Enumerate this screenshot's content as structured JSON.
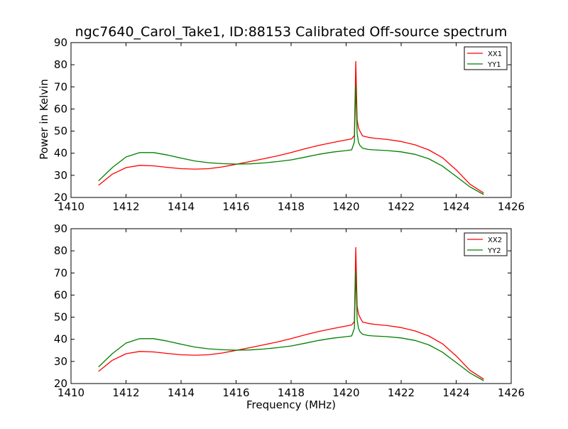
{
  "title": "ngc7640_Carol_Take1, ID:88153 Calibrated Off-source spectrum",
  "colors": {
    "xx": "#ff0000",
    "yy": "#008000"
  },
  "chart_data": [
    {
      "type": "line",
      "title": "ngc7640_Carol_Take1, ID:88153 Calibrated Off-source spectrum",
      "xlabel": "",
      "ylabel": "Power in Kelvin",
      "xlim": [
        1410,
        1426
      ],
      "ylim": [
        20,
        90
      ],
      "xticks": [
        1410,
        1412,
        1414,
        1416,
        1418,
        1420,
        1422,
        1424,
        1426
      ],
      "yticks": [
        20,
        30,
        40,
        50,
        60,
        70,
        80,
        90
      ],
      "grid": false,
      "legend": "top-right",
      "series": [
        {
          "name": "XX1",
          "color": "#ff0000",
          "x": [
            1411.0,
            1411.5,
            1412.0,
            1412.5,
            1413.0,
            1413.5,
            1414.0,
            1414.5,
            1415.0,
            1415.5,
            1416.0,
            1416.5,
            1417.0,
            1417.5,
            1418.0,
            1418.5,
            1419.0,
            1419.5,
            1420.0,
            1420.2,
            1420.3,
            1420.35,
            1420.4,
            1420.45,
            1420.5,
            1420.6,
            1420.8,
            1421.0,
            1421.5,
            1422.0,
            1422.5,
            1423.0,
            1423.5,
            1424.0,
            1424.5,
            1425.0
          ],
          "y": [
            25.5,
            30.5,
            33.5,
            34.5,
            34.3,
            33.6,
            33.0,
            32.8,
            33.0,
            33.8,
            35.0,
            36.2,
            37.5,
            38.8,
            40.3,
            42.0,
            43.5,
            44.8,
            46.0,
            46.5,
            48.0,
            81.5,
            55.0,
            51.5,
            50.0,
            47.8,
            47.2,
            46.8,
            46.2,
            45.3,
            43.8,
            41.5,
            38.0,
            32.5,
            26.0,
            22.0
          ]
        },
        {
          "name": "YY1",
          "color": "#008000",
          "x": [
            1411.0,
            1411.5,
            1412.0,
            1412.5,
            1413.0,
            1413.5,
            1414.0,
            1414.5,
            1415.0,
            1415.5,
            1416.0,
            1416.5,
            1417.0,
            1417.5,
            1418.0,
            1418.5,
            1419.0,
            1419.5,
            1420.0,
            1420.2,
            1420.3,
            1420.35,
            1420.4,
            1420.45,
            1420.5,
            1420.6,
            1420.8,
            1421.0,
            1421.5,
            1422.0,
            1422.5,
            1423.0,
            1423.5,
            1424.0,
            1424.5,
            1425.0
          ],
          "y": [
            27.5,
            33.5,
            38.3,
            40.3,
            40.3,
            39.2,
            37.8,
            36.5,
            35.7,
            35.3,
            35.1,
            35.2,
            35.6,
            36.2,
            37.0,
            38.2,
            39.5,
            40.5,
            41.2,
            41.5,
            45.0,
            71.0,
            49.0,
            45.0,
            43.5,
            42.3,
            41.7,
            41.5,
            41.2,
            40.6,
            39.5,
            37.5,
            34.2,
            29.5,
            24.8,
            21.3
          ]
        }
      ]
    },
    {
      "type": "line",
      "title": "",
      "xlabel": "Frequency (MHz)",
      "ylabel": "",
      "xlim": [
        1410,
        1426
      ],
      "ylim": [
        20,
        90
      ],
      "xticks": [
        1410,
        1412,
        1414,
        1416,
        1418,
        1420,
        1422,
        1424,
        1426
      ],
      "yticks": [
        20,
        30,
        40,
        50,
        60,
        70,
        80,
        90
      ],
      "grid": false,
      "legend": "top-right",
      "series": [
        {
          "name": "XX2",
          "color": "#ff0000",
          "x": [
            1411.0,
            1411.5,
            1412.0,
            1412.5,
            1413.0,
            1413.5,
            1414.0,
            1414.5,
            1415.0,
            1415.5,
            1416.0,
            1416.5,
            1417.0,
            1417.5,
            1418.0,
            1418.5,
            1419.0,
            1419.5,
            1420.0,
            1420.2,
            1420.3,
            1420.35,
            1420.4,
            1420.45,
            1420.5,
            1420.6,
            1420.8,
            1421.0,
            1421.5,
            1422.0,
            1422.5,
            1423.0,
            1423.5,
            1424.0,
            1424.5,
            1425.0
          ],
          "y": [
            25.5,
            30.5,
            33.5,
            34.5,
            34.3,
            33.6,
            33.0,
            32.8,
            33.0,
            33.8,
            35.0,
            36.2,
            37.5,
            38.8,
            40.3,
            42.0,
            43.5,
            44.8,
            46.0,
            46.5,
            48.0,
            81.5,
            55.0,
            51.5,
            50.0,
            47.8,
            47.2,
            46.8,
            46.2,
            45.3,
            43.8,
            41.5,
            38.0,
            32.5,
            26.0,
            22.0
          ]
        },
        {
          "name": "YY2",
          "color": "#008000",
          "x": [
            1411.0,
            1411.5,
            1412.0,
            1412.5,
            1413.0,
            1413.5,
            1414.0,
            1414.5,
            1415.0,
            1415.5,
            1416.0,
            1416.5,
            1417.0,
            1417.5,
            1418.0,
            1418.5,
            1419.0,
            1419.5,
            1420.0,
            1420.2,
            1420.3,
            1420.35,
            1420.4,
            1420.45,
            1420.5,
            1420.6,
            1420.8,
            1421.0,
            1421.5,
            1422.0,
            1422.5,
            1423.0,
            1423.5,
            1424.0,
            1424.5,
            1425.0
          ],
          "y": [
            27.5,
            33.5,
            38.3,
            40.3,
            40.3,
            39.2,
            37.8,
            36.5,
            35.7,
            35.3,
            35.1,
            35.2,
            35.6,
            36.2,
            37.0,
            38.2,
            39.5,
            40.5,
            41.2,
            41.5,
            45.0,
            71.0,
            49.0,
            45.0,
            43.5,
            42.3,
            41.7,
            41.5,
            41.2,
            40.6,
            39.5,
            37.5,
            34.2,
            29.5,
            24.8,
            21.3
          ]
        }
      ]
    }
  ]
}
